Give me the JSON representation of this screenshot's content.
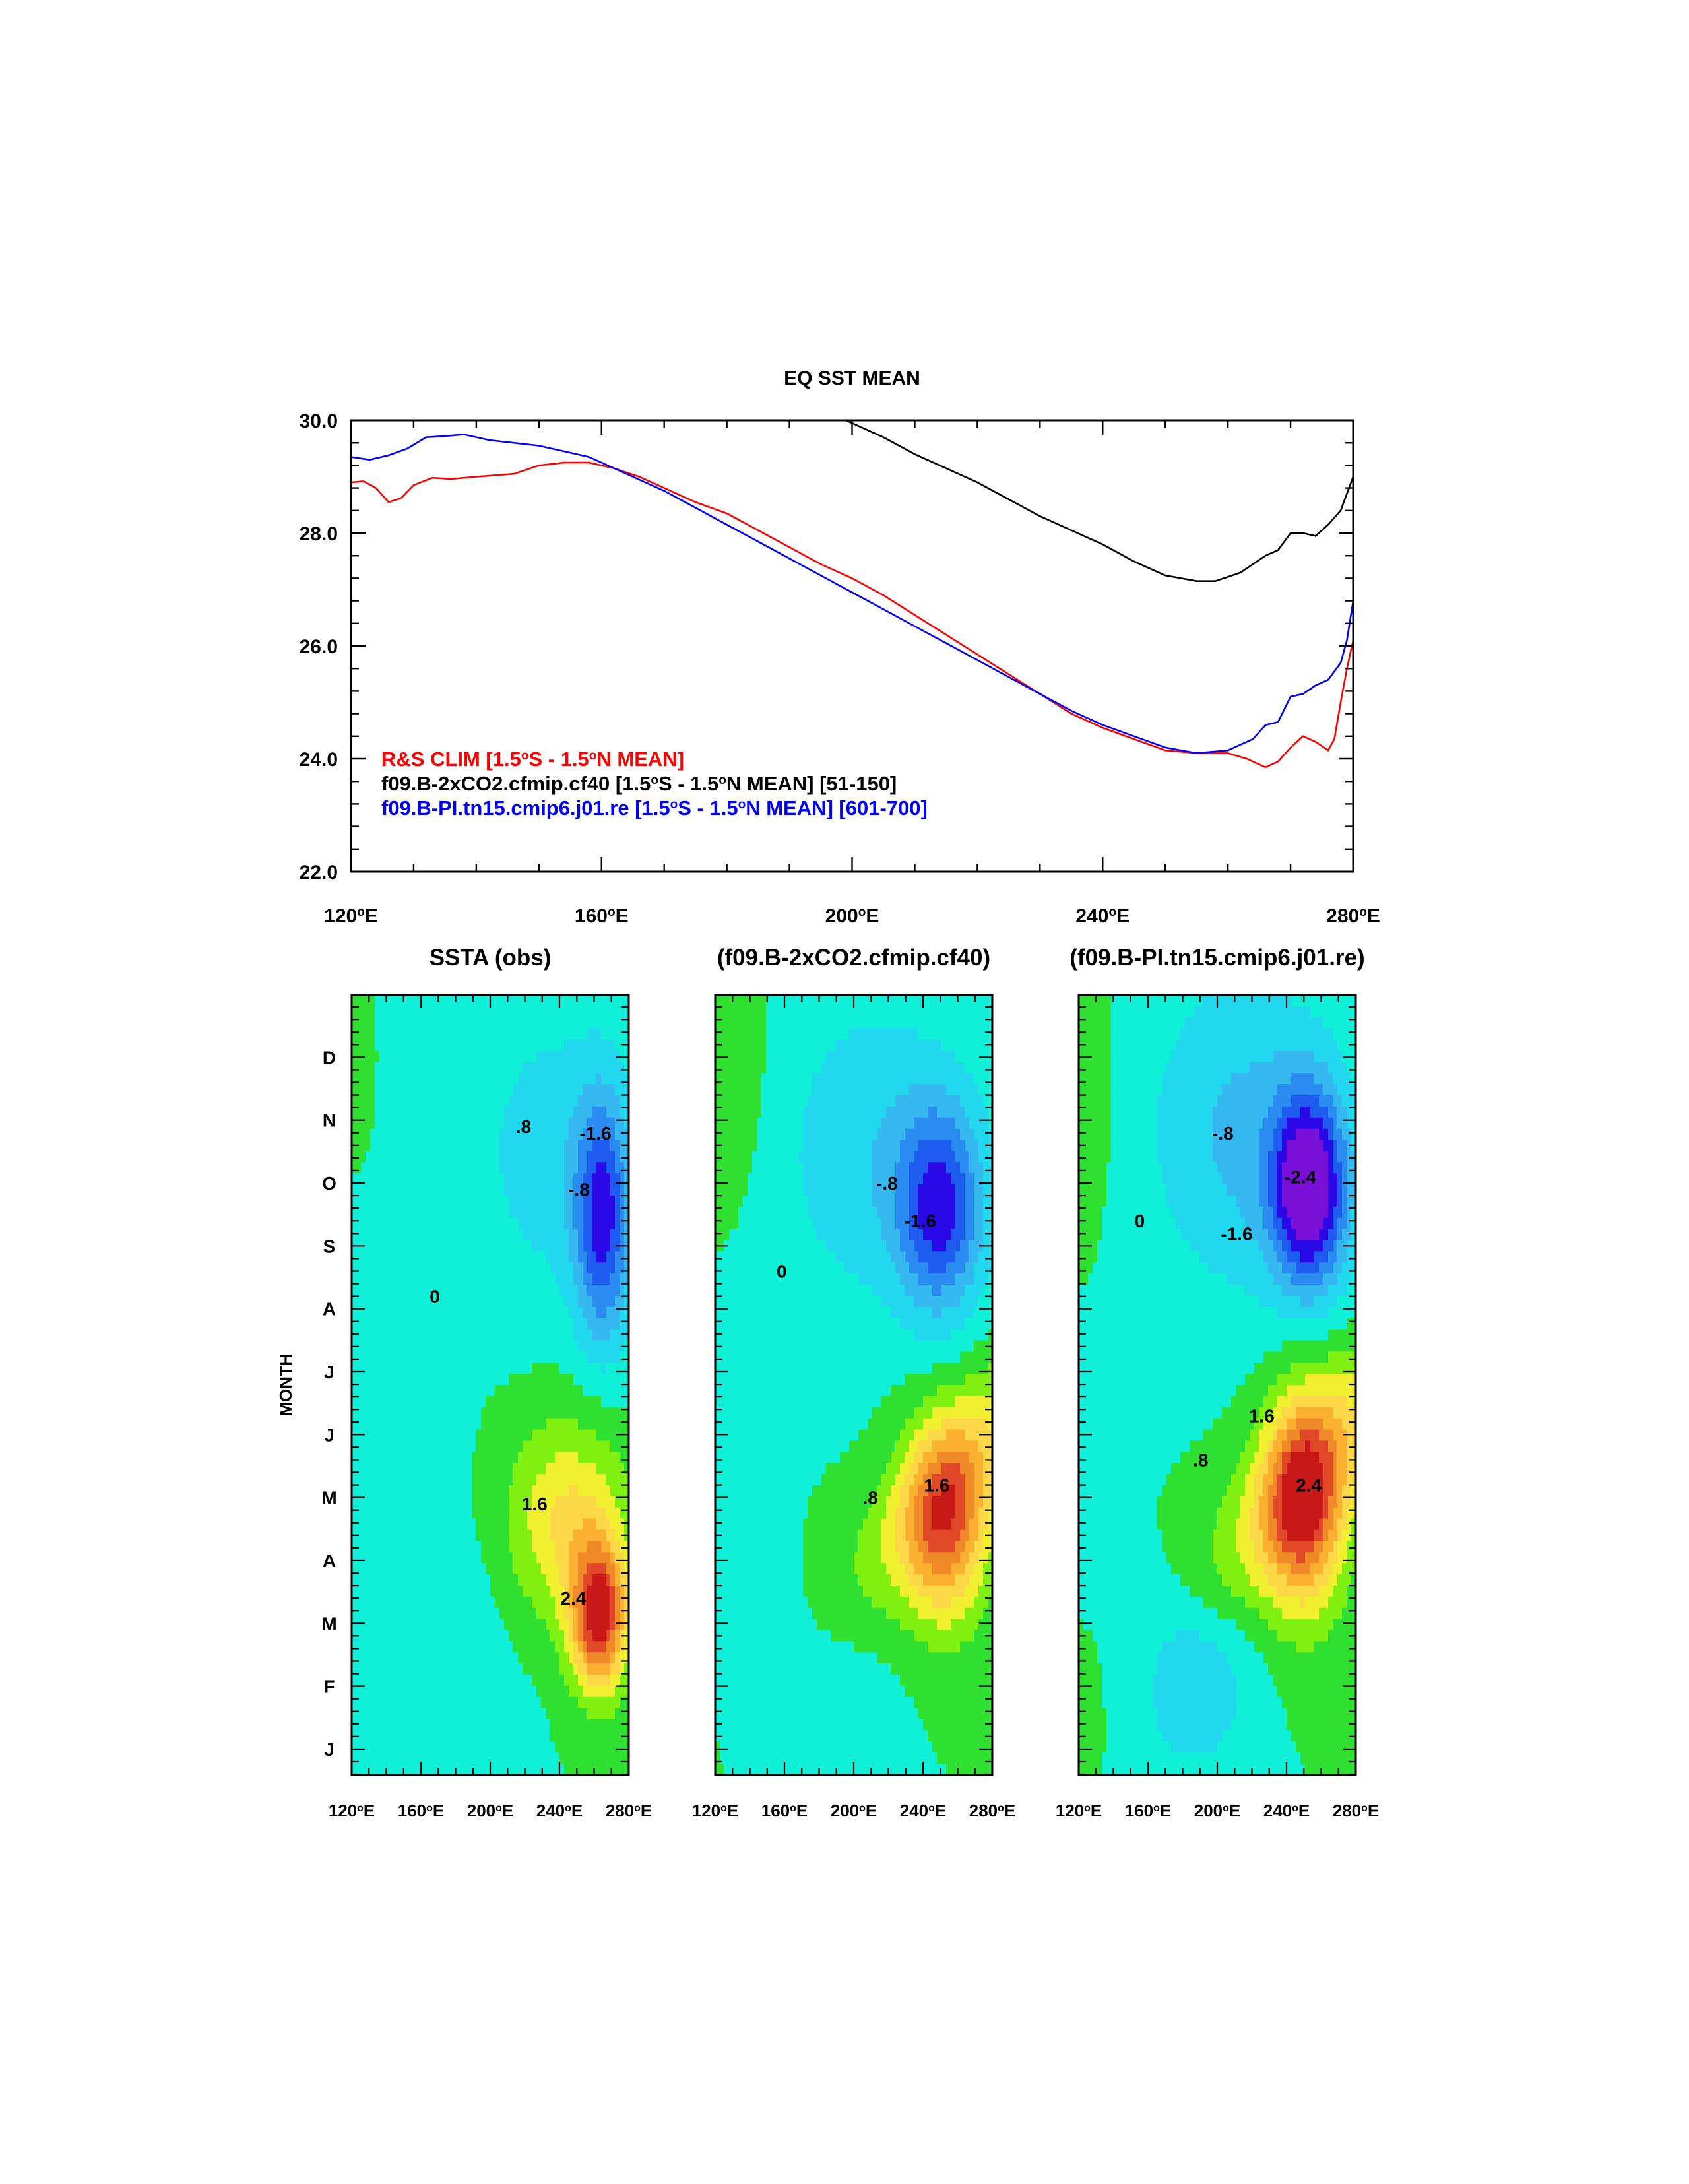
{
  "chart_data": [
    {
      "type": "line",
      "title": "EQ SST MEAN",
      "xlabel": "",
      "ylabel": "",
      "xlim": [
        120,
        280
      ],
      "ylim": [
        22,
        30
      ],
      "x_ticks": [
        "120°E",
        "160°E",
        "200°E",
        "240°E",
        "280°E"
      ],
      "y_ticks": [
        "22.0",
        "24.0",
        "26.0",
        "28.0",
        "30.0"
      ],
      "legend": "lower-left",
      "series": [
        {
          "name": "R&S CLIM [1.5°S - 1.5°N MEAN]",
          "color": "#ff0000",
          "points": [
            [
              120,
              28.9
            ],
            [
              122,
              28.92
            ],
            [
              124,
              28.8
            ],
            [
              126,
              28.55
            ],
            [
              128,
              28.62
            ],
            [
              130,
              28.85
            ],
            [
              133,
              28.98
            ],
            [
              136,
              28.96
            ],
            [
              140,
              29.0
            ],
            [
              146,
              29.05
            ],
            [
              150,
              29.2
            ],
            [
              154,
              29.25
            ],
            [
              158,
              29.25
            ],
            [
              162,
              29.15
            ],
            [
              166,
              29.0
            ],
            [
              170,
              28.8
            ],
            [
              175,
              28.55
            ],
            [
              180,
              28.35
            ],
            [
              185,
              28.05
            ],
            [
              190,
              27.75
            ],
            [
              195,
              27.45
            ],
            [
              200,
              27.2
            ],
            [
              205,
              26.9
            ],
            [
              210,
              26.55
            ],
            [
              215,
              26.2
            ],
            [
              220,
              25.85
            ],
            [
              225,
              25.5
            ],
            [
              230,
              25.15
            ],
            [
              235,
              24.8
            ],
            [
              240,
              24.55
            ],
            [
              245,
              24.35
            ],
            [
              250,
              24.15
            ],
            [
              255,
              24.1
            ],
            [
              260,
              24.1
            ],
            [
              263,
              24.0
            ],
            [
              266,
              23.85
            ],
            [
              268,
              23.95
            ],
            [
              270,
              24.2
            ],
            [
              272,
              24.4
            ],
            [
              274,
              24.3
            ],
            [
              276,
              24.15
            ],
            [
              277,
              24.35
            ],
            [
              278,
              25.0
            ],
            [
              279,
              25.6
            ],
            [
              280,
              26.1
            ]
          ]
        },
        {
          "name": "f09.B-2xCO2.cfmip.cf40 [1.5°S - 1.5°N MEAN] [51-150]",
          "color": "#000000",
          "points": [
            [
              199,
              30.0
            ],
            [
              205,
              29.7
            ],
            [
              210,
              29.4
            ],
            [
              215,
              29.15
            ],
            [
              220,
              28.9
            ],
            [
              225,
              28.6
            ],
            [
              230,
              28.3
            ],
            [
              235,
              28.05
            ],
            [
              240,
              27.8
            ],
            [
              245,
              27.5
            ],
            [
              250,
              27.25
            ],
            [
              255,
              27.15
            ],
            [
              258,
              27.15
            ],
            [
              262,
              27.3
            ],
            [
              266,
              27.6
            ],
            [
              268,
              27.7
            ],
            [
              270,
              28.0
            ],
            [
              272,
              28.0
            ],
            [
              274,
              27.95
            ],
            [
              276,
              28.15
            ],
            [
              278,
              28.4
            ],
            [
              280,
              29.0
            ]
          ]
        },
        {
          "name": "f09.B-PI.tn15.cmip6.j01.re [1.5°S - 1.5°N MEAN] [601-700]",
          "color": "#0000ff",
          "points": [
            [
              120,
              29.35
            ],
            [
              123,
              29.3
            ],
            [
              126,
              29.38
            ],
            [
              129,
              29.5
            ],
            [
              132,
              29.7
            ],
            [
              135,
              29.72
            ],
            [
              138,
              29.75
            ],
            [
              142,
              29.65
            ],
            [
              146,
              29.6
            ],
            [
              150,
              29.55
            ],
            [
              154,
              29.45
            ],
            [
              158,
              29.35
            ],
            [
              162,
              29.15
            ],
            [
              166,
              28.95
            ],
            [
              170,
              28.75
            ],
            [
              175,
              28.45
            ],
            [
              180,
              28.15
            ],
            [
              185,
              27.85
            ],
            [
              190,
              27.55
            ],
            [
              195,
              27.25
            ],
            [
              200,
              26.95
            ],
            [
              205,
              26.65
            ],
            [
              210,
              26.35
            ],
            [
              215,
              26.05
            ],
            [
              220,
              25.75
            ],
            [
              225,
              25.45
            ],
            [
              230,
              25.15
            ],
            [
              235,
              24.85
            ],
            [
              240,
              24.6
            ],
            [
              245,
              24.4
            ],
            [
              250,
              24.2
            ],
            [
              255,
              24.1
            ],
            [
              260,
              24.15
            ],
            [
              264,
              24.35
            ],
            [
              266,
              24.6
            ],
            [
              268,
              24.65
            ],
            [
              270,
              25.1
            ],
            [
              272,
              25.15
            ],
            [
              274,
              25.3
            ],
            [
              276,
              25.4
            ],
            [
              278,
              25.7
            ],
            [
              279,
              26.1
            ],
            [
              280,
              26.8
            ]
          ]
        }
      ]
    },
    {
      "type": "heatmap",
      "title": "SSTA (obs)",
      "ylabel": "MONTH",
      "xlim": [
        120,
        280
      ],
      "x_ticks": [
        "120°E",
        "160°E",
        "200°E",
        "240°E",
        "280°E"
      ],
      "y_ticks": [
        "J",
        "F",
        "M",
        "A",
        "M",
        "J",
        "J",
        "A",
        "S",
        "O",
        "N",
        "D"
      ],
      "contour_labels": [
        "-.8",
        "-1.6",
        ".8",
        "1.6",
        "2.4",
        "0"
      ],
      "features": [
        {
          "lon": 263,
          "month": 2.1,
          "value": 2.9
        },
        {
          "lon": 265,
          "month": 8.4,
          "value": -2.0
        },
        {
          "lon": 140,
          "month": 7.2,
          "value": -0.3
        }
      ]
    },
    {
      "type": "heatmap",
      "title": "(f09.B-2xCO2.cfmip.cf40)",
      "xlim": [
        120,
        280
      ],
      "x_ticks": [
        "120°E",
        "160°E",
        "200°E",
        "240°E",
        "280°E"
      ],
      "contour_labels": [
        "-.8",
        "-1.6",
        ".8",
        "1.6",
        "0"
      ],
      "features": [
        {
          "lon": 253,
          "month": 3.6,
          "value": 2.2
        },
        {
          "lon": 250,
          "month": 8.6,
          "value": -2.0
        },
        {
          "lon": 170,
          "month": 1.5,
          "value": -0.3
        }
      ]
    },
    {
      "type": "heatmap",
      "title": "(f09.B-PI.tn15.cmip6.j01.re)",
      "xlim": [
        120,
        280
      ],
      "x_ticks": [
        "120°E",
        "160°E",
        "200°E",
        "240°E",
        "280°E"
      ],
      "contour_labels": [
        "-.8",
        "-1.6",
        "-2.4",
        ".8",
        "1.6",
        "2.4",
        "0"
      ],
      "features": [
        {
          "lon": 250,
          "month": 3.9,
          "value": 2.6
        },
        {
          "lon": 253,
          "month": 8.9,
          "value": -2.9
        },
        {
          "lon": 185,
          "month": 1.2,
          "value": -0.9
        }
      ]
    }
  ],
  "colors": {
    "levels": [
      -2.4,
      -2.0,
      -1.6,
      -1.2,
      -0.8,
      -0.4,
      0,
      0.4,
      0.8,
      1.2,
      1.6,
      2.0,
      2.4,
      2.8
    ],
    "fill": [
      "#7a10d8",
      "#2a08e8",
      "#1e5cf0",
      "#2a8cf0",
      "#34b8ef",
      "#22d8ee",
      "#10f0d8",
      "#30e030",
      "#80f010",
      "#f0f030",
      "#fcd848",
      "#fcb030",
      "#f08a28",
      "#e04828",
      "#c81818"
    ]
  }
}
